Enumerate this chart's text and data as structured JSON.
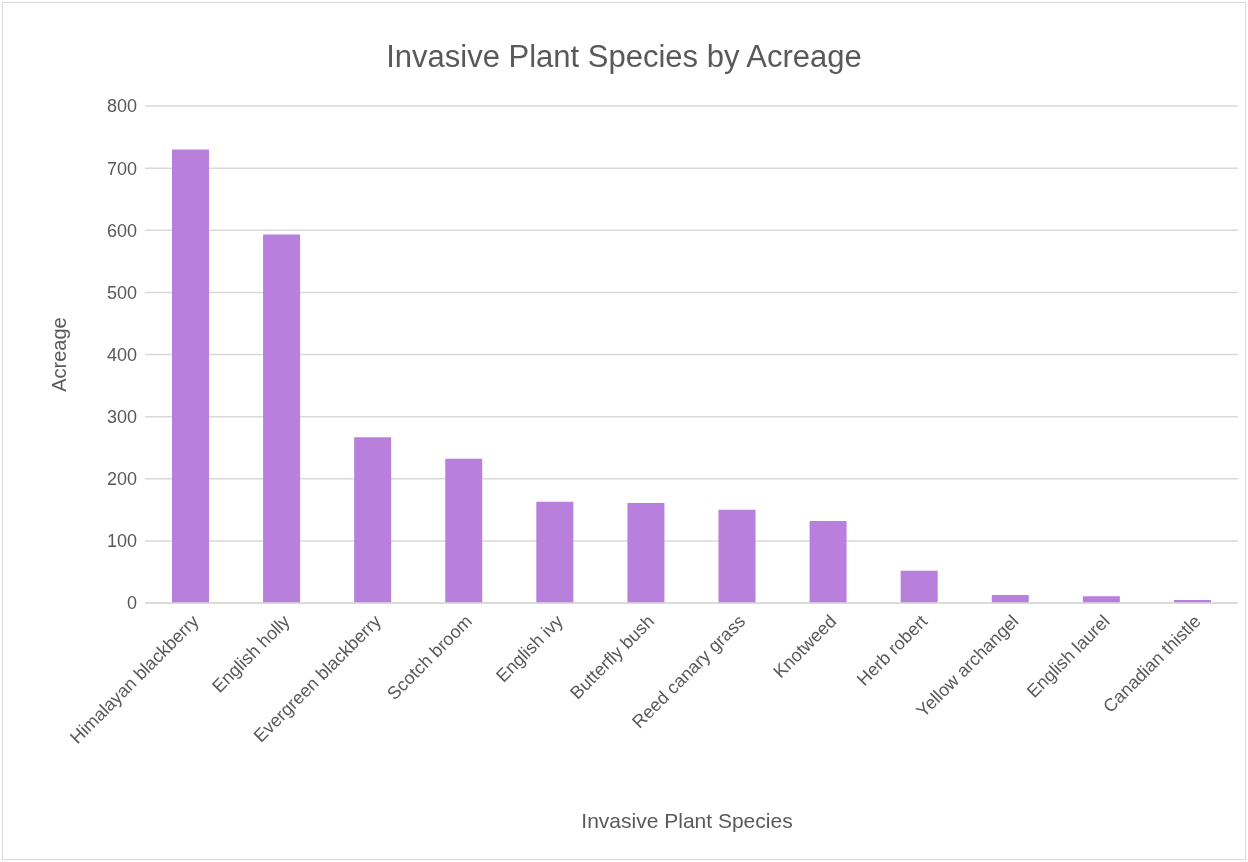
{
  "chart_data": {
    "type": "bar",
    "title": "Invasive Plant Species by Acreage",
    "xlabel": "Invasive Plant Species",
    "ylabel": "Acreage",
    "categories": [
      "Himalayan blackberry",
      "English holly",
      "Evergreen blackberry",
      "Scotch broom",
      "English ivy",
      "Butterfly bush",
      "Reed canary grass",
      "Knotweed",
      "Herb robert",
      "Yellow archangel",
      "English laurel",
      "Canadian thistle"
    ],
    "values": [
      730,
      593,
      267,
      232,
      163,
      161,
      150,
      132,
      52,
      13,
      11,
      5
    ],
    "color": "#b87fdc",
    "ylim": [
      0,
      800
    ],
    "yticks": [
      0,
      100,
      200,
      300,
      400,
      500,
      600,
      700,
      800
    ],
    "grid": "y"
  }
}
